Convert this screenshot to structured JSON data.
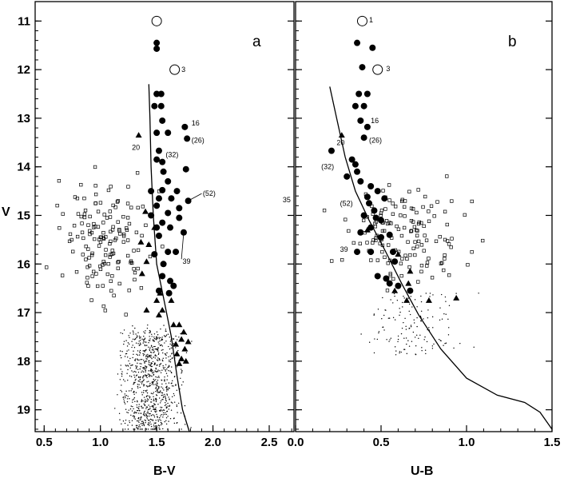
{
  "chart_data": [
    {
      "type": "scatter",
      "panel_label": "a",
      "xlabel": "B-V",
      "ylabel": "V",
      "xlim": [
        0.42,
        2.72
      ],
      "ylim": [
        19.45,
        10.6
      ],
      "xticks": [
        "0.5",
        "1.0",
        "1.5",
        "2.0",
        "2.5"
      ],
      "yticks": [
        "11",
        "12",
        "13",
        "14",
        "15",
        "16",
        "17",
        "18",
        "19"
      ],
      "isochrone": [
        [
          1.43,
          12.3
        ],
        [
          1.44,
          13.0
        ],
        [
          1.45,
          14.0
        ],
        [
          1.47,
          15.0
        ],
        [
          1.5,
          16.0
        ],
        [
          1.57,
          16.8
        ],
        [
          1.63,
          17.5
        ],
        [
          1.68,
          18.3
        ],
        [
          1.73,
          19.0
        ],
        [
          1.79,
          19.45
        ]
      ],
      "open_circles": [
        [
          1.5,
          11.0
        ],
        [
          1.66,
          12.0
        ]
      ],
      "filled_circles": [
        [
          1.5,
          11.45
        ],
        [
          1.5,
          11.57
        ],
        [
          1.5,
          12.5
        ],
        [
          1.54,
          12.5
        ],
        [
          1.48,
          12.75
        ],
        [
          1.54,
          12.75
        ],
        [
          1.55,
          13.05
        ],
        [
          1.75,
          13.18
        ],
        [
          1.5,
          13.3
        ],
        [
          1.6,
          13.3
        ],
        [
          1.77,
          13.42
        ],
        [
          1.52,
          13.67
        ],
        [
          1.5,
          13.85
        ],
        [
          1.55,
          13.9
        ],
        [
          1.56,
          14.1
        ],
        [
          1.76,
          14.05
        ],
        [
          1.6,
          14.3
        ],
        [
          1.45,
          14.5
        ],
        [
          1.55,
          14.48
        ],
        [
          1.68,
          14.5
        ],
        [
          1.52,
          14.65
        ],
        [
          1.63,
          14.65
        ],
        [
          1.5,
          14.8
        ],
        [
          1.7,
          14.85
        ],
        [
          1.78,
          14.7
        ],
        [
          1.6,
          14.95
        ],
        [
          1.45,
          15.0
        ],
        [
          1.7,
          15.05
        ],
        [
          1.55,
          15.15
        ],
        [
          1.5,
          15.25
        ],
        [
          1.62,
          15.25
        ],
        [
          1.74,
          15.35
        ],
        [
          1.52,
          15.42
        ],
        [
          1.6,
          15.75
        ],
        [
          1.67,
          15.75
        ],
        [
          1.48,
          15.8
        ],
        [
          1.56,
          16.0
        ],
        [
          1.55,
          16.25
        ],
        [
          1.62,
          16.35
        ],
        [
          1.65,
          16.45
        ],
        [
          1.52,
          16.55
        ],
        [
          1.61,
          16.6
        ]
      ],
      "triangles": [
        [
          1.34,
          13.35
        ],
        [
          1.4,
          14.92
        ],
        [
          1.48,
          15.25
        ],
        [
          1.36,
          15.55
        ],
        [
          1.43,
          15.6
        ],
        [
          1.41,
          15.95
        ],
        [
          1.37,
          16.2
        ],
        [
          1.53,
          16.6
        ],
        [
          1.5,
          16.75
        ],
        [
          1.63,
          16.75
        ],
        [
          1.55,
          16.95
        ],
        [
          1.41,
          16.95
        ],
        [
          1.52,
          17.05
        ],
        [
          1.65,
          17.25
        ],
        [
          1.7,
          17.25
        ],
        [
          1.74,
          17.4
        ],
        [
          1.72,
          17.55
        ],
        [
          1.78,
          17.6
        ],
        [
          1.67,
          17.65
        ],
        [
          1.75,
          17.75
        ],
        [
          1.68,
          17.85
        ],
        [
          1.72,
          17.95
        ],
        [
          1.7,
          18.05
        ],
        [
          1.76,
          18.0
        ]
      ],
      "labels": [
        {
          "text": "3",
          "x": 1.72,
          "y": 12.0
        },
        {
          "text": "16",
          "x": 1.81,
          "y": 13.1
        },
        {
          "text": "(26)",
          "x": 1.81,
          "y": 13.45
        },
        {
          "text": "20",
          "x": 1.28,
          "y": 13.6
        },
        {
          "text": "(32)",
          "x": 1.58,
          "y": 13.75
        },
        {
          "text": "(52)",
          "x": 1.91,
          "y": 14.55
        },
        {
          "text": "35",
          "x": 2.62,
          "y": 14.68
        },
        {
          "text": "39",
          "x": 1.73,
          "y": 15.95
        }
      ]
    },
    {
      "type": "scatter",
      "panel_label": "b",
      "xlabel": "U-B",
      "xlim": [
        0.0,
        1.5
      ],
      "ylim": [
        19.45,
        10.6
      ],
      "xticks": [
        "0.0",
        "0.5",
        "1.0",
        "1.5"
      ],
      "isochrone": [
        [
          0.2,
          12.35
        ],
        [
          0.24,
          13.0
        ],
        [
          0.29,
          13.8
        ],
        [
          0.35,
          14.5
        ],
        [
          0.43,
          15.1
        ],
        [
          0.52,
          15.7
        ],
        [
          0.62,
          16.4
        ],
        [
          0.72,
          17.05
        ],
        [
          0.85,
          17.75
        ],
        [
          1.0,
          18.35
        ],
        [
          1.18,
          18.7
        ],
        [
          1.34,
          18.85
        ],
        [
          1.43,
          19.05
        ],
        [
          1.5,
          19.4
        ]
      ],
      "open_circles": [
        [
          0.39,
          11.0
        ],
        [
          0.48,
          12.0
        ]
      ],
      "filled_circles": [
        [
          0.36,
          11.45
        ],
        [
          0.45,
          11.55
        ],
        [
          0.39,
          11.95
        ],
        [
          0.37,
          12.5
        ],
        [
          0.42,
          12.5
        ],
        [
          0.35,
          12.75
        ],
        [
          0.4,
          12.75
        ],
        [
          0.38,
          13.05
        ],
        [
          0.42,
          13.18
        ],
        [
          0.4,
          13.4
        ],
        [
          0.21,
          13.67
        ],
        [
          0.33,
          13.85
        ],
        [
          0.35,
          13.95
        ],
        [
          0.36,
          14.1
        ],
        [
          0.3,
          14.2
        ],
        [
          0.38,
          14.3
        ],
        [
          0.44,
          14.4
        ],
        [
          0.48,
          14.5
        ],
        [
          0.42,
          14.62
        ],
        [
          0.52,
          14.65
        ],
        [
          0.43,
          14.75
        ],
        [
          0.46,
          14.9
        ],
        [
          0.4,
          15.0
        ],
        [
          0.47,
          15.05
        ],
        [
          0.5,
          15.1
        ],
        [
          0.44,
          15.25
        ],
        [
          0.55,
          15.4
        ],
        [
          0.38,
          15.35
        ],
        [
          0.5,
          15.45
        ],
        [
          0.36,
          15.75
        ],
        [
          0.44,
          15.75
        ],
        [
          0.57,
          15.75
        ],
        [
          0.58,
          15.95
        ],
        [
          0.48,
          16.25
        ],
        [
          0.53,
          16.3
        ],
        [
          0.55,
          16.4
        ],
        [
          0.6,
          16.45
        ],
        [
          0.67,
          16.55
        ]
      ],
      "triangles": [
        [
          0.27,
          13.35
        ],
        [
          0.42,
          15.3
        ],
        [
          0.6,
          15.8
        ],
        [
          0.67,
          16.15
        ],
        [
          0.66,
          16.4
        ],
        [
          0.58,
          16.55
        ],
        [
          0.65,
          16.75
        ],
        [
          0.94,
          16.7
        ],
        [
          0.78,
          16.75
        ]
      ],
      "labels": [
        {
          "text": "1",
          "x": 0.43,
          "y": 10.98
        },
        {
          "text": "3",
          "x": 0.53,
          "y": 11.98
        },
        {
          "text": "16",
          "x": 0.44,
          "y": 13.05
        },
        {
          "text": "20",
          "x": 0.24,
          "y": 13.5
        },
        {
          "text": "(26)",
          "x": 0.43,
          "y": 13.45
        },
        {
          "text": "(32)",
          "x": 0.15,
          "y": 14.0
        },
        {
          "text": "(52)",
          "x": 0.26,
          "y": 14.75
        },
        {
          "text": "39",
          "x": 0.26,
          "y": 15.7
        }
      ]
    }
  ]
}
